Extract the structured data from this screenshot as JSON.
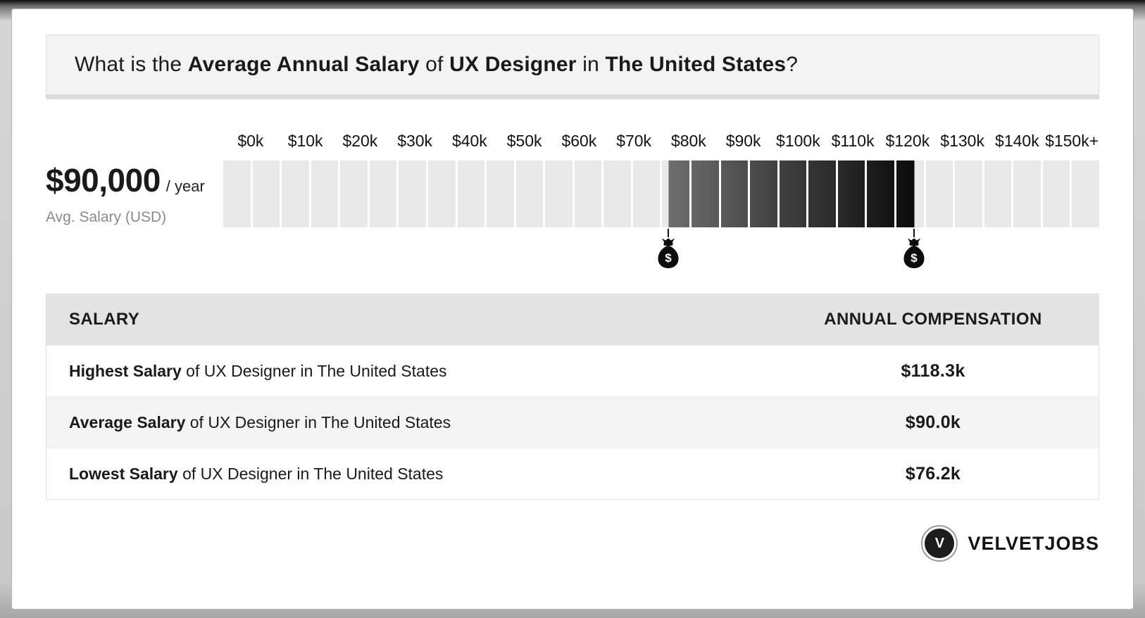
{
  "header": {
    "prefix": "What is the ",
    "bold1": "Average Annual Salary",
    "mid1": " of ",
    "bold2": "UX Designer",
    "mid2": " in ",
    "bold3": "The United States",
    "suffix": "?"
  },
  "summary": {
    "amount": "$90,000",
    "per": "/ year",
    "caption": "Avg. Salary (USD)"
  },
  "chart_data": {
    "type": "bar",
    "title": "Average Annual Salary of UX Designer in The United States",
    "tick_labels": [
      "$0k",
      "$10k",
      "$20k",
      "$30k",
      "$40k",
      "$50k",
      "$60k",
      "$70k",
      "$80k",
      "$90k",
      "$100k",
      "$110k",
      "$120k",
      "$130k",
      "$140k",
      "$150k+"
    ],
    "axis_min": 0,
    "axis_max": 150,
    "cell_step": 5,
    "unit": "USD thousands per year",
    "highlight": {
      "low": 76.2,
      "high": 118.3
    },
    "values": {
      "lowest_k": 76.2,
      "average_k": 90.0,
      "highest_k": 118.3
    },
    "cell_color": "#e9e9e9",
    "highlight_gradient": [
      "#6e6e6e",
      "#0a0a0a"
    ],
    "marker_icon": "money-bag",
    "legend": "none",
    "grid": "off"
  },
  "table": {
    "headers": [
      "SALARY",
      "ANNUAL COMPENSATION"
    ],
    "rows": [
      {
        "bold": "Highest Salary",
        "rest": " of UX Designer in The United States",
        "value": "$118.3k"
      },
      {
        "bold": "Average Salary",
        "rest": " of UX Designer in The United States",
        "value": "$90.0k"
      },
      {
        "bold": "Lowest Salary",
        "rest": " of UX Designer in The United States",
        "value": "$76.2k"
      }
    ]
  },
  "footer": {
    "logo_letter": "V",
    "brand": "VELVETJOBS"
  }
}
